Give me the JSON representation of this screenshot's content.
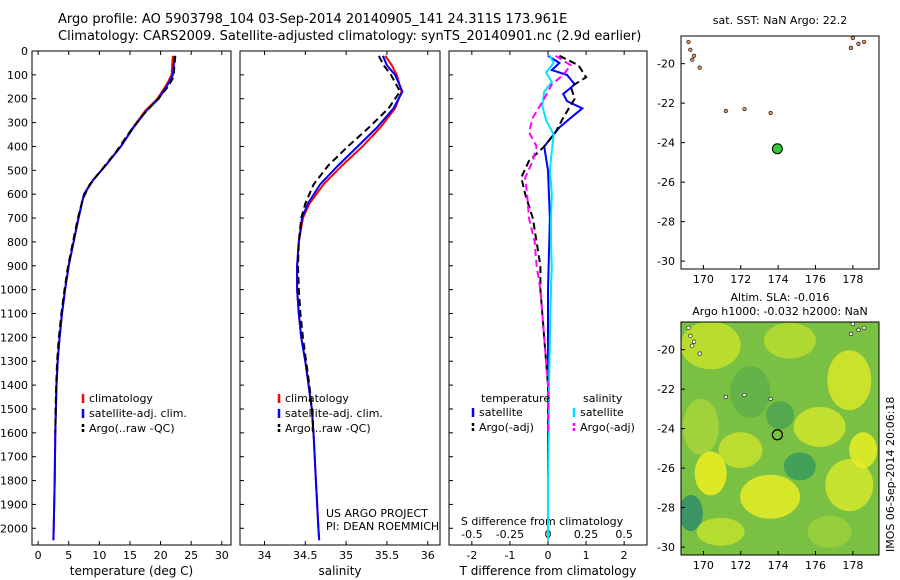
{
  "header": {
    "line1": "Argo profile: AO 5903798_104 03-Sep-2014 20140905_141 24.311S 173.961E",
    "line2": "Climatology: CARS2009. Satellite-adjusted climatology: synTS_20140901.nc (2.9d earlier)"
  },
  "credit": "IMOS 06-Sep-2014 20:06:18",
  "colors": {
    "climatology": "#ff0000",
    "satellite": "#0000ff",
    "argo": "#000000",
    "sal_sat": "#00e5ff",
    "sal_argo": "#ff00ff",
    "marker": "#33cc33",
    "land": "#e89060"
  },
  "chart_data": [
    {
      "id": "temperature",
      "type": "line",
      "xlabel": "temperature (deg C)",
      "ylabel": "",
      "xlim": [
        -1,
        31.5
      ],
      "ylim": [
        2070,
        0
      ],
      "xticks": [
        0,
        5,
        10,
        15,
        20,
        25,
        30
      ],
      "yticks": [
        0,
        100,
        200,
        300,
        400,
        500,
        600,
        700,
        800,
        900,
        1000,
        1100,
        1200,
        1300,
        1400,
        1500,
        1600,
        1700,
        1800,
        1900,
        2000
      ],
      "legend": [
        "climatology",
        "satellite-adj. clim.",
        "Argo(..raw -QC)"
      ],
      "series": [
        {
          "name": "climatology",
          "style": "solid",
          "color": "#ff0000",
          "points": [
            [
              22.0,
              20
            ],
            [
              21.8,
              100
            ],
            [
              21.0,
              140
            ],
            [
              19.5,
              200
            ],
            [
              17.5,
              250
            ],
            [
              15.5,
              320
            ],
            [
              13.5,
              400
            ],
            [
              11.0,
              480
            ],
            [
              9.0,
              540
            ],
            [
              7.5,
              600
            ],
            [
              6.6,
              700
            ],
            [
              5.8,
              800
            ],
            [
              5.0,
              900
            ],
            [
              4.4,
              1000
            ],
            [
              3.9,
              1100
            ],
            [
              3.5,
              1200
            ],
            [
              3.2,
              1300
            ],
            [
              3.0,
              1400
            ],
            [
              2.9,
              1500
            ],
            [
              2.8,
              1600
            ],
            [
              2.7,
              1800
            ],
            [
              2.55,
              2000
            ],
            [
              2.5,
              2050
            ]
          ]
        },
        {
          "name": "satellite-adj. clim.",
          "style": "solid",
          "color": "#0000ff",
          "points": [
            [
              22.3,
              20
            ],
            [
              22.0,
              100
            ],
            [
              21.2,
              140
            ],
            [
              19.7,
              200
            ],
            [
              17.7,
              250
            ],
            [
              15.6,
              320
            ],
            [
              13.5,
              400
            ],
            [
              11.0,
              480
            ],
            [
              9.0,
              540
            ],
            [
              7.5,
              600
            ],
            [
              6.6,
              700
            ],
            [
              5.8,
              800
            ],
            [
              5.0,
              900
            ],
            [
              4.4,
              1000
            ],
            [
              3.9,
              1100
            ],
            [
              3.5,
              1200
            ],
            [
              3.2,
              1300
            ],
            [
              3.0,
              1400
            ],
            [
              2.9,
              1500
            ],
            [
              2.8,
              1600
            ],
            [
              2.7,
              1800
            ],
            [
              2.55,
              2000
            ],
            [
              2.5,
              2050
            ]
          ]
        },
        {
          "name": "Argo(..raw -QC)",
          "style": "dashed",
          "color": "#000000",
          "points": [
            [
              22.4,
              20
            ],
            [
              22.1,
              110
            ],
            [
              21.2,
              150
            ],
            [
              19.6,
              200
            ],
            [
              17.4,
              260
            ],
            [
              15.2,
              330
            ],
            [
              12.8,
              420
            ],
            [
              10.3,
              500
            ],
            [
              8.4,
              560
            ],
            [
              7.3,
              620
            ],
            [
              6.5,
              700
            ],
            [
              5.7,
              800
            ],
            [
              4.9,
              900
            ],
            [
              4.3,
              1000
            ],
            [
              3.8,
              1100
            ],
            [
              3.4,
              1200
            ],
            [
              3.1,
              1300
            ],
            [
              2.95,
              1400
            ],
            [
              2.85,
              1500
            ],
            [
              2.8,
              1600
            ]
          ]
        }
      ]
    },
    {
      "id": "salinity",
      "type": "line",
      "xlabel": "salinity",
      "ylabel": "",
      "xlim": [
        33.7,
        36.15
      ],
      "ylim": [
        2070,
        0
      ],
      "xticks": [
        34,
        34.5,
        35,
        35.5,
        36
      ],
      "legend": [
        "climatology",
        "satellite-adj. clim.",
        "Argo(..raw -QC)"
      ],
      "annotation": [
        "US ARGO PROJECT",
        "PI: DEAN ROEMMICH"
      ],
      "series": [
        {
          "name": "climatology",
          "style": "solid",
          "color": "#ff0000",
          "points": [
            [
              35.48,
              20
            ],
            [
              35.56,
              60
            ],
            [
              35.62,
              100
            ],
            [
              35.68,
              170
            ],
            [
              35.6,
              240
            ],
            [
              35.42,
              320
            ],
            [
              35.2,
              400
            ],
            [
              34.95,
              480
            ],
            [
              34.72,
              560
            ],
            [
              34.55,
              640
            ],
            [
              34.47,
              700
            ],
            [
              34.42,
              800
            ],
            [
              34.4,
              900
            ],
            [
              34.4,
              1000
            ],
            [
              34.42,
              1100
            ],
            [
              34.45,
              1200
            ],
            [
              34.5,
              1300
            ],
            [
              34.54,
              1400
            ],
            [
              34.58,
              1500
            ],
            [
              34.6,
              1600
            ],
            [
              34.63,
              1800
            ],
            [
              34.66,
              2000
            ],
            [
              34.67,
              2050
            ]
          ]
        },
        {
          "name": "satellite-adj. clim.",
          "style": "solid",
          "color": "#0000ff",
          "points": [
            [
              35.45,
              20
            ],
            [
              35.5,
              60
            ],
            [
              35.6,
              100
            ],
            [
              35.69,
              170
            ],
            [
              35.58,
              240
            ],
            [
              35.38,
              320
            ],
            [
              35.14,
              400
            ],
            [
              34.9,
              480
            ],
            [
              34.68,
              560
            ],
            [
              34.53,
              640
            ],
            [
              34.46,
              700
            ],
            [
              34.42,
              800
            ],
            [
              34.4,
              900
            ],
            [
              34.4,
              1000
            ],
            [
              34.42,
              1100
            ],
            [
              34.45,
              1200
            ],
            [
              34.5,
              1300
            ],
            [
              34.54,
              1400
            ],
            [
              34.58,
              1500
            ],
            [
              34.6,
              1600
            ],
            [
              34.63,
              1800
            ],
            [
              34.66,
              2000
            ],
            [
              34.67,
              2050
            ]
          ]
        },
        {
          "name": "Argo(..raw -QC)",
          "style": "dashed",
          "color": "#000000",
          "points": [
            [
              35.4,
              20
            ],
            [
              35.46,
              60
            ],
            [
              35.55,
              100
            ],
            [
              35.66,
              170
            ],
            [
              35.52,
              240
            ],
            [
              35.28,
              320
            ],
            [
              35.02,
              400
            ],
            [
              34.78,
              480
            ],
            [
              34.6,
              560
            ],
            [
              34.5,
              640
            ],
            [
              34.45,
              700
            ],
            [
              34.42,
              800
            ],
            [
              34.41,
              900
            ],
            [
              34.42,
              1000
            ],
            [
              34.44,
              1100
            ],
            [
              34.47,
              1200
            ],
            [
              34.51,
              1300
            ],
            [
              34.55,
              1400
            ],
            [
              34.58,
              1500
            ],
            [
              34.6,
              1600
            ]
          ]
        }
      ]
    },
    {
      "id": "difference",
      "type": "line",
      "xlabel": "T difference from climatology",
      "xlabel_top": "S difference from climatology",
      "xlim": [
        -2.6,
        2.6
      ],
      "ylim": [
        2070,
        0
      ],
      "xticks": [
        -2,
        -1,
        0,
        1,
        2
      ],
      "xticklabels_s": [
        "-0.5",
        "-0.25",
        "0",
        "0.25",
        "0.5"
      ],
      "legend_headers": [
        "temperature",
        "salinity"
      ],
      "legend": [
        "satellite",
        "Argo(-adj)",
        "satellite",
        "Argo(-adj)"
      ],
      "series": [
        {
          "name": "satellite",
          "quantity": "temperature",
          "style": "solid",
          "color": "#0000ff",
          "points": [
            [
              0.0,
              20
            ],
            [
              0.3,
              50
            ],
            [
              0.1,
              80
            ],
            [
              0.5,
              100
            ],
            [
              0.7,
              140
            ],
            [
              0.4,
              180
            ],
            [
              0.5,
              210
            ],
            [
              0.9,
              240
            ],
            [
              0.6,
              280
            ],
            [
              0.3,
              320
            ],
            [
              0.1,
              360
            ],
            [
              -0.1,
              400
            ],
            [
              0.0,
              500
            ],
            [
              0.05,
              700
            ],
            [
              0.0,
              1000
            ],
            [
              0.0,
              1400
            ],
            [
              0.0,
              1800
            ],
            [
              0.0,
              2050
            ]
          ]
        },
        {
          "name": "Argo(-adj)",
          "quantity": "temperature",
          "style": "dashed",
          "color": "#000000",
          "points": [
            [
              0.3,
              20
            ],
            [
              0.8,
              60
            ],
            [
              1.0,
              110
            ],
            [
              0.6,
              150
            ],
            [
              0.7,
              200
            ],
            [
              0.4,
              280
            ],
            [
              0.2,
              340
            ],
            [
              -0.1,
              400
            ],
            [
              -0.5,
              460
            ],
            [
              -0.7,
              530
            ],
            [
              -0.6,
              600
            ],
            [
              -0.4,
              700
            ],
            [
              -0.3,
              800
            ],
            [
              -0.2,
              900
            ],
            [
              -0.2,
              1000
            ],
            [
              -0.15,
              1100
            ],
            [
              -0.1,
              1200
            ],
            [
              -0.05,
              1300
            ],
            [
              0.0,
              1400
            ],
            [
              0.0,
              1600
            ]
          ]
        },
        {
          "name": "satellite",
          "quantity": "salinity",
          "style": "solid",
          "color": "#00e5ff",
          "points": [
            [
              0.05,
              20
            ],
            [
              0.15,
              50
            ],
            [
              -0.05,
              90
            ],
            [
              0.1,
              130
            ],
            [
              -0.1,
              170
            ],
            [
              -0.15,
              230
            ],
            [
              -0.05,
              290
            ],
            [
              0.15,
              350
            ],
            [
              0.1,
              420
            ],
            [
              0.05,
              500
            ],
            [
              0.1,
              600
            ],
            [
              0.08,
              700
            ],
            [
              0.08,
              800
            ],
            [
              0.1,
              900
            ],
            [
              0.08,
              1000
            ],
            [
              0.05,
              1200
            ],
            [
              0.03,
              1400
            ],
            [
              0.02,
              1600
            ],
            [
              0.0,
              1800
            ],
            [
              0.0,
              2050
            ]
          ]
        },
        {
          "name": "Argo(-adj)",
          "quantity": "salinity",
          "style": "dashed",
          "color": "#ff00ff",
          "points": [
            [
              0.2,
              20
            ],
            [
              0.6,
              60
            ],
            [
              0.4,
              100
            ],
            [
              0.1,
              140
            ],
            [
              -0.1,
              200
            ],
            [
              -0.4,
              280
            ],
            [
              -0.5,
              340
            ],
            [
              -0.3,
              400
            ],
            [
              -0.4,
              460
            ],
            [
              -0.6,
              530
            ],
            [
              -0.55,
              600
            ],
            [
              -0.5,
              700
            ],
            [
              -0.35,
              800
            ],
            [
              -0.3,
              900
            ],
            [
              -0.2,
              1000
            ],
            [
              -0.15,
              1100
            ],
            [
              -0.1,
              1200
            ],
            [
              -0.05,
              1300
            ],
            [
              0.0,
              1400
            ],
            [
              0.0,
              1600
            ]
          ]
        }
      ]
    },
    {
      "id": "sst_map",
      "type": "scatter",
      "title": "sat. SST: NaN Argo: 22.2",
      "xlim": [
        168.8,
        179.4
      ],
      "ylim": [
        -30.4,
        -18.6
      ],
      "xticks": [
        170,
        172,
        174,
        176,
        178
      ],
      "yticks": [
        -20,
        -22,
        -24,
        -26,
        -28,
        -30
      ],
      "points": [
        {
          "lon": 173.96,
          "lat": -24.31
        }
      ],
      "land": [
        [
          169.2,
          -18.9
        ],
        [
          169.3,
          -19.3
        ],
        [
          169.5,
          -19.6
        ],
        [
          169.8,
          -20.2
        ],
        [
          169.4,
          -19.8
        ],
        [
          178.0,
          -18.7
        ],
        [
          178.3,
          -19.0
        ],
        [
          177.9,
          -19.2
        ],
        [
          178.6,
          -18.9
        ],
        [
          171.2,
          -22.4
        ],
        [
          172.2,
          -22.3
        ],
        [
          173.6,
          -22.5
        ]
      ]
    },
    {
      "id": "sla_map",
      "type": "heatmap",
      "title_lines": [
        "Altim. SLA: -0.016",
        "Argo h1000: -0.032 h2000: NaN"
      ],
      "xlim": [
        168.8,
        179.4
      ],
      "ylim": [
        -30.4,
        -18.6
      ],
      "xticks": [
        170,
        172,
        174,
        176,
        178
      ],
      "yticks": [
        -20,
        -22,
        -24,
        -26,
        -28,
        -30
      ],
      "points": [
        {
          "lon": 173.96,
          "lat": -24.31
        }
      ]
    }
  ]
}
